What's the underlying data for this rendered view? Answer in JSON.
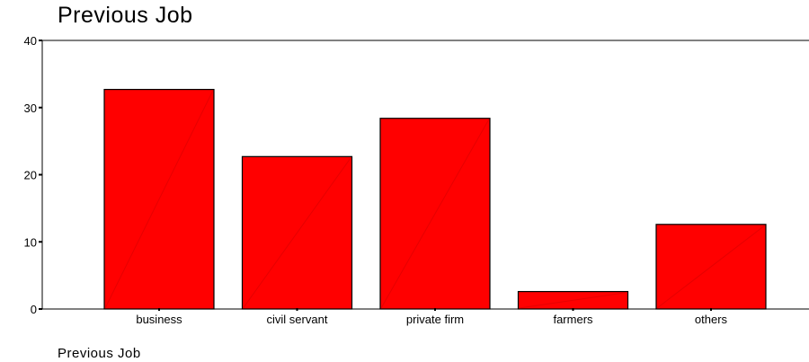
{
  "chart_data": {
    "type": "bar",
    "title": "Previous Job",
    "xlabel": "Previous Job",
    "ylabel": "",
    "categories": [
      "business",
      "civil servant",
      "private firm",
      "farmers",
      "others"
    ],
    "values": [
      32.7,
      22.7,
      28.4,
      2.6,
      12.6
    ],
    "ylim": [
      0,
      40
    ],
    "yticks": [
      0,
      10,
      20,
      30,
      40
    ],
    "grid": false,
    "legend": "none",
    "bar_color": "#ff0000",
    "bar_edge_color": "#000000"
  }
}
